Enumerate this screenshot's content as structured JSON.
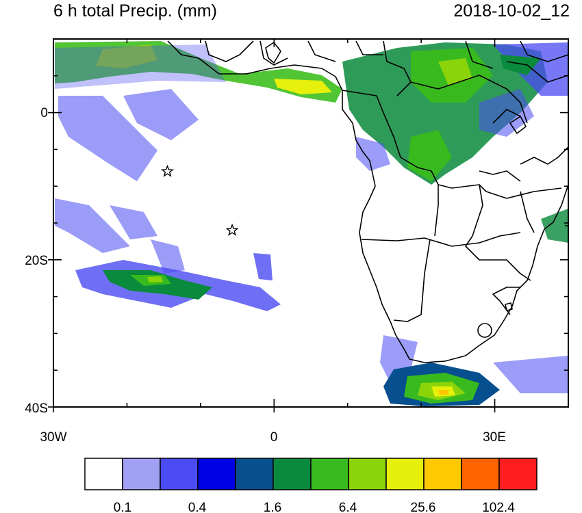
{
  "title": {
    "left": "6 h total Precip. (mm)",
    "right": "2018-10-02_12"
  },
  "axes": {
    "y_labels": [
      "0",
      "20S",
      "40S"
    ],
    "x_labels": [
      "30W",
      "0",
      "30E"
    ],
    "y_values": [
      0,
      -20,
      -40
    ],
    "x_values": [
      -30,
      0,
      30
    ],
    "lon_range": [
      -30,
      40
    ],
    "lat_range": [
      -40,
      10
    ]
  },
  "colorbar": {
    "colors": [
      "#ffffff",
      "#a0a0f4",
      "#4b4bf4",
      "#0000e6",
      "#06508f",
      "#0a8a3c",
      "#38ba1e",
      "#8cd40a",
      "#e6f00a",
      "#ffc800",
      "#ff6400",
      "#ff1e1e"
    ],
    "labels": [
      "0.1",
      "0.4",
      "1.6",
      "6.4",
      "25.6",
      "102.4"
    ]
  },
  "markers": [
    {
      "name": "star-marker",
      "lon": -14.5,
      "lat": -8
    },
    {
      "name": "star-marker",
      "lon": -5.7,
      "lat": -16
    }
  ]
}
